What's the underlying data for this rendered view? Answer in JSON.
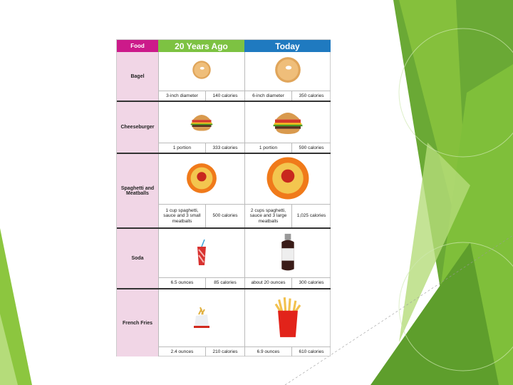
{
  "headers": {
    "food": "Food",
    "past": "20 Years Ago",
    "today": "Today"
  },
  "rows": [
    {
      "food": "Bagel",
      "past_size": "3-inch diameter",
      "past_cal": "140 calories",
      "today_size": "6-inch diameter",
      "today_cal": "350 calories"
    },
    {
      "food": "Cheeseburger",
      "past_size": "1 portion",
      "past_cal": "333 calories",
      "today_size": "1 portion",
      "today_cal": "590 calories"
    },
    {
      "food": "Spaghetti and Meatballs",
      "past_size": "1 cup spaghetti, sauce and 3 small meatballs",
      "past_cal": "500 calories",
      "today_size": "2 cups spaghetti, sauce and 3 large meatballs",
      "today_cal": "1,025 calories"
    },
    {
      "food": "Soda",
      "past_size": "6.5 ounces",
      "past_cal": "85 calories",
      "today_size": "about 20 ounces",
      "today_cal": "300 calories"
    },
    {
      "food": "French Fries",
      "past_size": "2.4 ounces",
      "past_cal": "210 calories",
      "today_size": "6.9 ounces",
      "today_cal": "610 calories"
    }
  ],
  "colors": {
    "food_header": "#cc1a8a",
    "past_header": "#7dc242",
    "today_header": "#1f7ac0",
    "label_bg": "#f1d6e6",
    "accent_green": "#8dc63f"
  }
}
